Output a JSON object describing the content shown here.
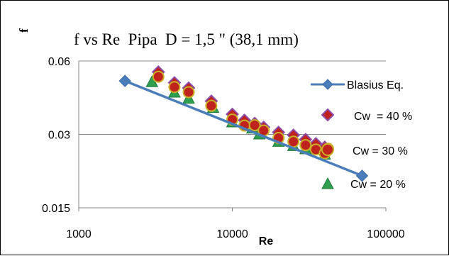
{
  "chart_data": {
    "type": "scatter",
    "title": "f vs Re  Pipa  D = 1,5 \" (38,1 mm)",
    "xlabel": "Re",
    "ylabel": "f",
    "x_scale": "log",
    "y_scale": "log",
    "xlim": [
      1000,
      100000
    ],
    "ylim": [
      0.015,
      0.06
    ],
    "x_ticks": [
      "1000",
      "10000",
      "100000"
    ],
    "y_ticks": [
      "0.015",
      "0.03",
      "0.06"
    ],
    "grid": "horizontal",
    "legend_position": "right",
    "series": [
      {
        "name": "Blasius Eq.",
        "kind": "line",
        "marker": "diamond",
        "color": "#4A7EBB",
        "points": [
          [
            2000,
            0.0497
          ],
          [
            70000,
            0.0203
          ]
        ]
      },
      {
        "name": "Cw  = 40 %",
        "kind": "scatter",
        "marker": "diamond",
        "color": "#8B4BA6",
        "points": [
          [
            3300,
            0.0541
          ],
          [
            4200,
            0.0489
          ],
          [
            5200,
            0.0465
          ],
          [
            7300,
            0.0411
          ],
          [
            10000,
            0.0363
          ],
          [
            12000,
            0.0343
          ],
          [
            14000,
            0.0333
          ],
          [
            16000,
            0.0321
          ],
          [
            20000,
            0.0306
          ],
          [
            25000,
            0.0298
          ],
          [
            30000,
            0.0286
          ],
          [
            35000,
            0.0275
          ],
          [
            40000,
            0.0266
          ]
        ]
      },
      {
        "name": "Cw = 30 %",
        "kind": "scatter",
        "marker": "circle",
        "color": "#C0221E",
        "points": [
          [
            3300,
            0.0517
          ],
          [
            4200,
            0.0469
          ],
          [
            5200,
            0.0447
          ],
          [
            7300,
            0.0393
          ],
          [
            10000,
            0.0345
          ],
          [
            12000,
            0.0326
          ],
          [
            14000,
            0.0327
          ],
          [
            16000,
            0.0311
          ],
          [
            20000,
            0.029
          ],
          [
            25000,
            0.028
          ],
          [
            30000,
            0.0271
          ],
          [
            35000,
            0.026
          ],
          [
            40000,
            0.0251
          ],
          [
            42000,
            0.0262
          ]
        ]
      },
      {
        "name": "Cw = 20 %",
        "kind": "scatter",
        "marker": "triangle",
        "color": "#2E9E4F",
        "points": [
          [
            3000,
            0.049
          ],
          [
            4200,
            0.0444
          ],
          [
            5200,
            0.0419
          ],
          [
            7500,
            0.0384
          ],
          [
            10000,
            0.0335
          ],
          [
            13500,
            0.0316
          ],
          [
            15000,
            0.0299
          ],
          [
            20000,
            0.0279
          ],
          [
            25000,
            0.0268
          ],
          [
            30000,
            0.026
          ],
          [
            35000,
            0.026
          ],
          [
            40000,
            0.0247
          ]
        ]
      }
    ]
  }
}
